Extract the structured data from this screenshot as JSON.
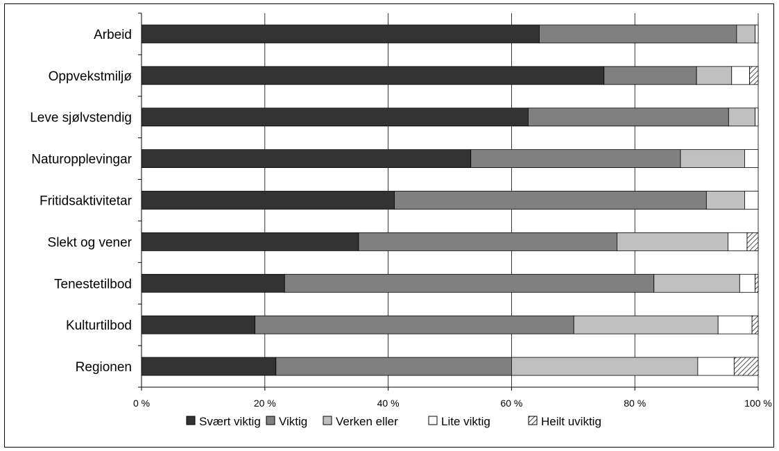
{
  "chart_data": {
    "type": "bar",
    "orientation": "horizontal",
    "stacked": true,
    "percent_stacked": true,
    "categories": [
      "Arbeid",
      "Oppvekstmiljø",
      "Leve sjølvstendig",
      "Naturopplevingar",
      "Fritidsaktivitetar",
      "Slekt og vener",
      "Tenestetilbod",
      "Kulturtilbod",
      "Regionen"
    ],
    "series": [
      {
        "name": "Svært viktig",
        "color": "#333333",
        "pattern": "solid",
        "values": [
          64.5,
          75.0,
          62.7,
          53.4,
          41.0,
          35.2,
          23.2,
          18.4,
          21.8
        ]
      },
      {
        "name": "Viktig",
        "color": "#808080",
        "pattern": "solid",
        "values": [
          32.0,
          15.0,
          32.5,
          34.0,
          50.6,
          41.9,
          59.9,
          51.7,
          38.2
        ]
      },
      {
        "name": "Verken eller",
        "color": "#c0c0c0",
        "pattern": "solid",
        "values": [
          3.0,
          5.7,
          4.3,
          10.4,
          6.2,
          18.0,
          13.9,
          23.4,
          30.2
        ]
      },
      {
        "name": "Lite viktig",
        "color": "#ffffff",
        "pattern": "solid",
        "values": [
          0.5,
          2.9,
          0.5,
          2.2,
          2.2,
          3.1,
          2.5,
          5.5,
          5.9
        ]
      },
      {
        "name": "Heilt uviktig",
        "color": "#ffffff",
        "pattern": "hatch",
        "values": [
          0.0,
          1.4,
          0.0,
          0.0,
          0.0,
          1.8,
          0.5,
          1.0,
          3.9
        ]
      }
    ],
    "x_ticks": [
      "0 %",
      "20 %",
      "40 %",
      "60 %",
      "80 %",
      "100 %"
    ],
    "xlim": [
      0,
      100
    ],
    "grid": "vertical",
    "legend_position": "bottom"
  }
}
